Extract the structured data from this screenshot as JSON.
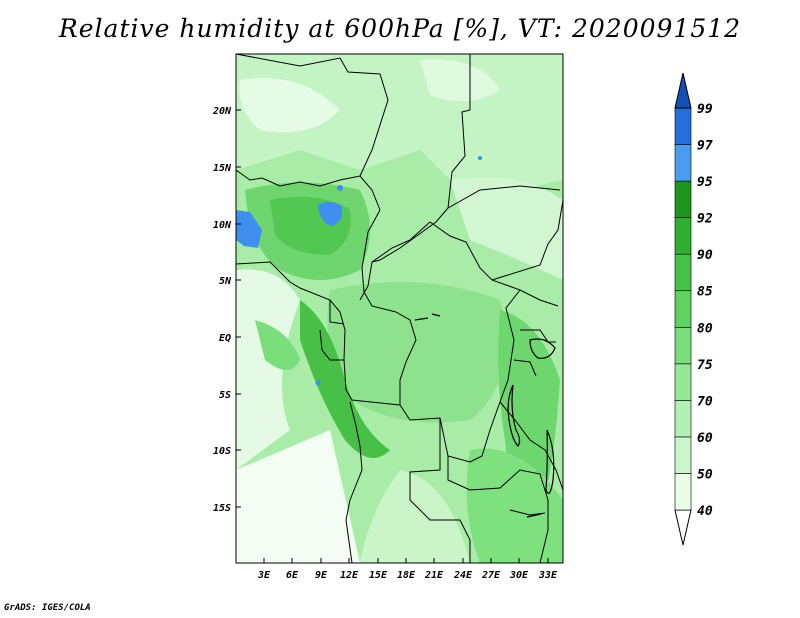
{
  "title": "Relative humidity at 600hPa [%], VT: 2020091512",
  "footer": "GrADS: IGES/COLA",
  "map": {
    "lon_range": [
      0,
      34
    ],
    "lat_range": [
      -20,
      24
    ],
    "lon_ticks": [
      "3E",
      "6E",
      "9E",
      "12E",
      "15E",
      "18E",
      "21E",
      "24E",
      "27E",
      "30E",
      "33E"
    ],
    "lat_ticks": [
      "20N",
      "15N",
      "10N",
      "5N",
      "EQ",
      "5S",
      "10S",
      "15S"
    ],
    "region": "West-Central Africa"
  },
  "colorbar": {
    "levels": [
      "40",
      "50",
      "60",
      "70",
      "75",
      "80",
      "85",
      "90",
      "92",
      "95",
      "97",
      "99"
    ],
    "colors": [
      "#ffffff",
      "#e8fce8",
      "#ccf7cc",
      "#b3f0b3",
      "#96e896",
      "#7ade7a",
      "#5fd25f",
      "#46c346",
      "#2fae2f",
      "#1e961e",
      "#4a9cf0",
      "#2570dc",
      "#1450b4"
    ]
  }
}
